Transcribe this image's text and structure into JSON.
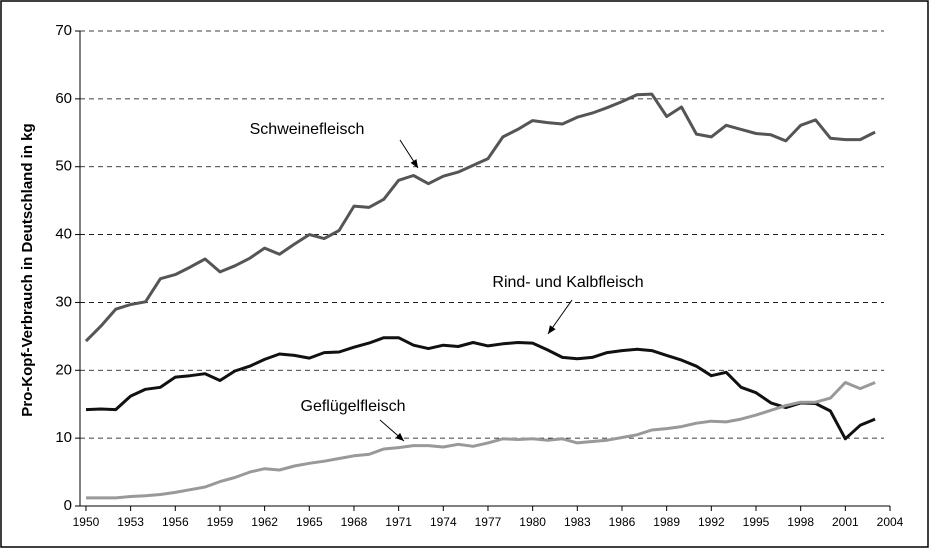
{
  "chart_data": {
    "type": "line",
    "y_label": "Pro-Kopf-Verbrauch in Deutschland in kg",
    "x": [
      1950,
      1951,
      1952,
      1953,
      1954,
      1955,
      1956,
      1957,
      1958,
      1959,
      1960,
      1961,
      1962,
      1963,
      1964,
      1965,
      1966,
      1967,
      1968,
      1969,
      1970,
      1971,
      1972,
      1973,
      1974,
      1975,
      1976,
      1977,
      1978,
      1979,
      1980,
      1981,
      1982,
      1983,
      1984,
      1985,
      1986,
      1987,
      1988,
      1989,
      1990,
      1991,
      1992,
      1993,
      1994,
      1995,
      1996,
      1997,
      1998,
      1999,
      2000,
      2001,
      2002,
      2003
    ],
    "series": [
      {
        "name": "Schweinefleisch",
        "color": "#555555",
        "values": [
          24.3,
          26.5,
          29.0,
          29.7,
          30.1,
          33.5,
          34.1,
          35.2,
          36.4,
          34.5,
          35.4,
          36.5,
          38.0,
          37.1,
          38.6,
          40.0,
          39.4,
          40.6,
          44.2,
          44.0,
          45.2,
          48.0,
          48.7,
          47.5,
          48.6,
          49.2,
          50.2,
          51.2,
          54.4,
          55.5,
          56.8,
          56.5,
          56.3,
          57.3,
          57.9,
          58.7,
          59.6,
          60.6,
          60.7,
          57.4,
          58.8,
          54.8,
          54.4,
          56.1,
          55.5,
          54.9,
          54.7,
          53.8,
          56.1,
          56.9,
          54.2,
          54.0,
          54.0,
          55.1
        ]
      },
      {
        "name": "Rind- und Kalbfleisch",
        "color": "#111111",
        "values": [
          14.2,
          14.3,
          14.2,
          16.2,
          17.2,
          17.5,
          19.0,
          19.2,
          19.5,
          18.5,
          19.9,
          20.6,
          21.6,
          22.4,
          22.2,
          21.8,
          22.6,
          22.7,
          23.4,
          24.0,
          24.8,
          24.8,
          23.7,
          23.2,
          23.7,
          23.5,
          24.1,
          23.6,
          23.9,
          24.1,
          24.0,
          23.0,
          21.9,
          21.7,
          21.9,
          22.6,
          22.9,
          23.1,
          22.9,
          22.2,
          21.5,
          20.6,
          19.2,
          19.7,
          17.5,
          16.7,
          15.2,
          14.5,
          15.2,
          15.1,
          14.0,
          9.9,
          11.9,
          12.8
        ]
      },
      {
        "name": "Geflügelfleisch",
        "color": "#999999",
        "values": [
          1.2,
          1.2,
          1.2,
          1.4,
          1.5,
          1.7,
          2.0,
          2.4,
          2.8,
          3.6,
          4.2,
          5.0,
          5.5,
          5.3,
          5.9,
          6.3,
          6.6,
          7.0,
          7.4,
          7.6,
          8.4,
          8.6,
          8.9,
          8.9,
          8.7,
          9.1,
          8.8,
          9.3,
          9.9,
          9.8,
          9.9,
          9.7,
          9.9,
          9.3,
          9.5,
          9.7,
          10.1,
          10.5,
          11.2,
          11.4,
          11.7,
          12.2,
          12.5,
          12.4,
          12.8,
          13.4,
          14.1,
          14.8,
          15.3,
          15.3,
          15.9,
          18.2,
          17.3,
          18.2
        ]
      }
    ],
    "xlim": [
      1949.6,
      2004
    ],
    "xticks": [
      1950,
      1953,
      1956,
      1959,
      1962,
      1965,
      1968,
      1971,
      1974,
      1977,
      1980,
      1983,
      1986,
      1989,
      1992,
      1995,
      1998,
      2001,
      2004
    ],
    "ylim": [
      0,
      70
    ],
    "yticks": [
      0,
      10,
      20,
      30,
      40,
      50,
      60,
      70
    ],
    "grid": true
  }
}
